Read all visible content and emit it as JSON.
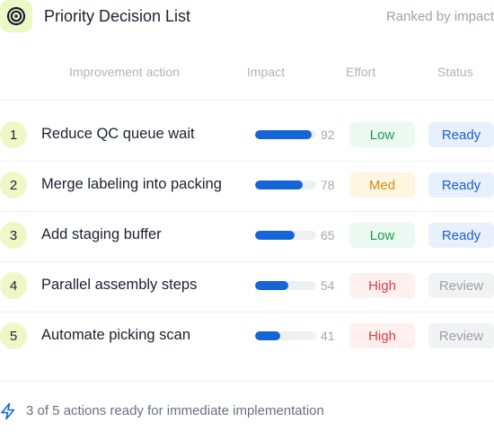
{
  "header": {
    "title": "Priority Decision List",
    "subtitle": "Ranked by impact",
    "icon": "target-icon"
  },
  "columns": {
    "action": "Improvement action",
    "impact": "Impact",
    "effort": "Effort",
    "status": "Status"
  },
  "rows": [
    {
      "rank": "1",
      "action": "Reduce QC queue wait",
      "impact": 92,
      "impact_fill": 0.92,
      "effort": "Low",
      "status": "Ready"
    },
    {
      "rank": "2",
      "action": "Merge labeling into packing",
      "impact": 78,
      "impact_fill": 0.78,
      "effort": "Med",
      "status": "Ready"
    },
    {
      "rank": "3",
      "action": "Add staging buffer",
      "impact": 65,
      "impact_fill": 0.65,
      "effort": "Low",
      "status": "Ready"
    },
    {
      "rank": "4",
      "action": "Parallel assembly steps",
      "impact": 54,
      "impact_fill": 0.54,
      "effort": "High",
      "status": "Review"
    },
    {
      "rank": "5",
      "action": "Automate picking scan",
      "impact": 41,
      "impact_fill": 0.41,
      "effort": "High",
      "status": "Review"
    }
  ],
  "footer": {
    "text": "3 of 5 actions ready for immediate implementation",
    "icon": "lightning-bolt-icon"
  },
  "colors": {
    "accent": "#1565d8",
    "badge_bg": "#eef7c6",
    "low": "#1e9950",
    "med": "#d98a12",
    "high": "#e23b3b",
    "ready": "#1b5fd1",
    "review": "#9ca1ab"
  }
}
